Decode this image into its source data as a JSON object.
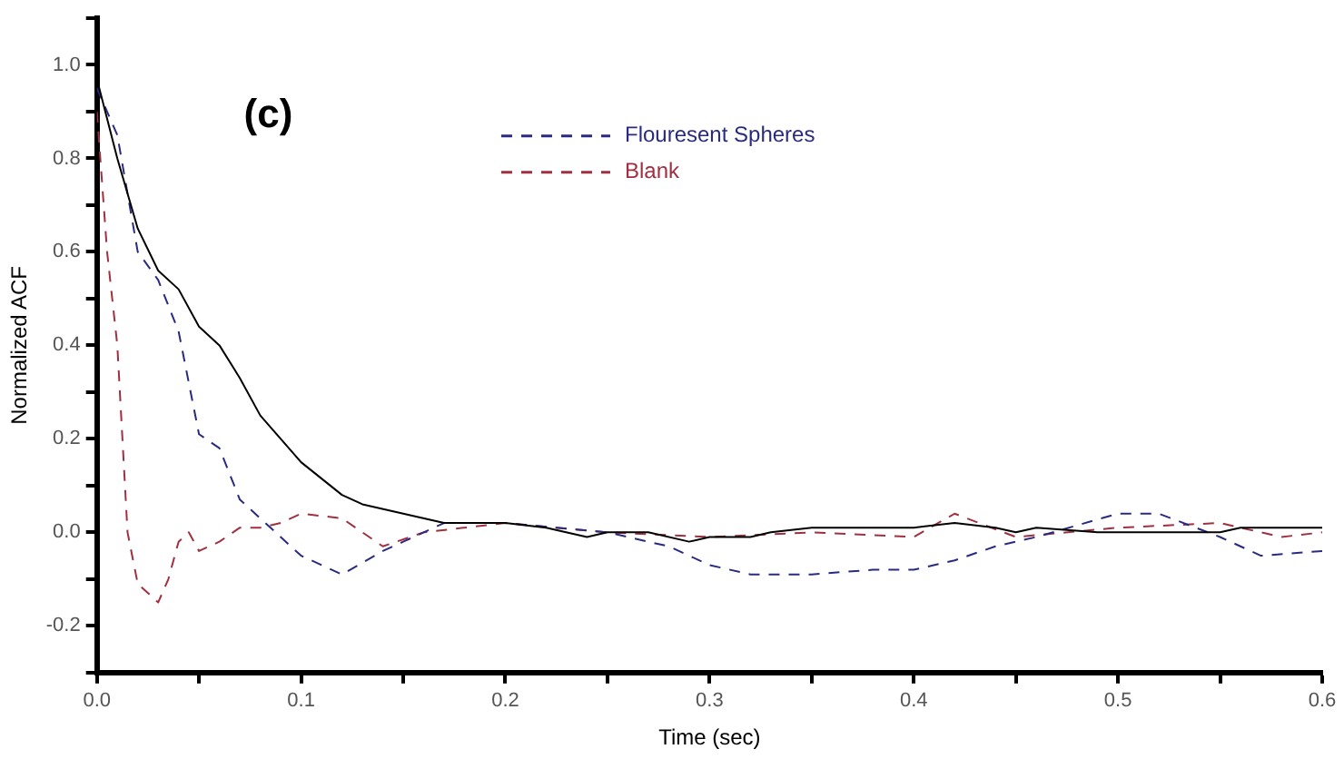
{
  "chart_data": {
    "type": "line",
    "title": "(c)",
    "xlabel": "Time (sec)",
    "ylabel": "Normalized ACF",
    "xlim": [
      0,
      0.6
    ],
    "ylim": [
      -0.3,
      1.1
    ],
    "xticks": [
      {
        "value": 0,
        "label": "0.0"
      },
      {
        "value": 0.05,
        "label": null
      },
      {
        "value": 0.1,
        "label": "0.1"
      },
      {
        "value": 0.15,
        "label": null
      },
      {
        "value": 0.2,
        "label": "0.2"
      },
      {
        "value": 0.25,
        "label": null
      },
      {
        "value": 0.3,
        "label": "0.3"
      },
      {
        "value": 0.35,
        "label": null
      },
      {
        "value": 0.4,
        "label": "0.4"
      },
      {
        "value": 0.45,
        "label": null
      },
      {
        "value": 0.5,
        "label": "0.5"
      },
      {
        "value": 0.55,
        "label": null
      },
      {
        "value": 0.6,
        "label": "0.6"
      }
    ],
    "yticks": [
      {
        "value": -0.3,
        "label": null
      },
      {
        "value": -0.2,
        "label": "-0.2"
      },
      {
        "value": -0.1,
        "label": null
      },
      {
        "value": 0,
        "label": "0.0"
      },
      {
        "value": 0.1,
        "label": null
      },
      {
        "value": 0.2,
        "label": "0.2"
      },
      {
        "value": 0.3,
        "label": null
      },
      {
        "value": 0.4,
        "label": "0.4"
      },
      {
        "value": 0.5,
        "label": null
      },
      {
        "value": 0.6,
        "label": "0.6"
      },
      {
        "value": 0.7,
        "label": null
      },
      {
        "value": 0.8,
        "label": "0.8"
      },
      {
        "value": 0.9,
        "label": null
      },
      {
        "value": 1.0,
        "label": "1.0"
      },
      {
        "value": 1.1,
        "label": null
      }
    ],
    "grid": false,
    "legend": "top",
    "marker": "none",
    "series": [
      {
        "color": "#000000",
        "line_style": "solid",
        "x": [
          0,
          0.01,
          0.02,
          0.03,
          0.04,
          0.05,
          0.06,
          0.07,
          0.08,
          0.09,
          0.1,
          0.12,
          0.13,
          0.15,
          0.17,
          0.2,
          0.22,
          0.24,
          0.25,
          0.27,
          0.29,
          0.3,
          0.32,
          0.33,
          0.35,
          0.4,
          0.42,
          0.44,
          0.45,
          0.46,
          0.49,
          0.55,
          0.56,
          0.6
        ],
        "values": [
          0.97,
          0.8,
          0.65,
          0.56,
          0.52,
          0.44,
          0.4,
          0.33,
          0.25,
          0.2,
          0.15,
          0.08,
          0.06,
          0.04,
          0.02,
          0.02,
          0.01,
          -0.01,
          0,
          0,
          -0.02,
          -0.01,
          -0.01,
          0,
          0.01,
          0.01,
          0.02,
          0.01,
          0,
          0.01,
          0,
          0,
          0.01,
          0.01
        ]
      },
      {
        "name": "Flouresent Spheres",
        "color": "#2a2a80",
        "line_style": "dashed",
        "x": [
          0,
          0.01,
          0.02,
          0.03,
          0.04,
          0.05,
          0.06,
          0.07,
          0.08,
          0.09,
          0.1,
          0.11,
          0.12,
          0.14,
          0.15,
          0.16,
          0.17,
          0.2,
          0.25,
          0.28,
          0.3,
          0.32,
          0.35,
          0.38,
          0.4,
          0.42,
          0.44,
          0.46,
          0.5,
          0.52,
          0.55,
          0.57,
          0.6
        ],
        "values": [
          0.95,
          0.85,
          0.6,
          0.54,
          0.43,
          0.21,
          0.18,
          0.07,
          0.03,
          -0.01,
          -0.05,
          -0.07,
          -0.09,
          -0.04,
          -0.02,
          0,
          0.02,
          0.02,
          0,
          -0.03,
          -0.07,
          -0.09,
          -0.09,
          -0.08,
          -0.08,
          -0.06,
          -0.03,
          -0.01,
          0.04,
          0.04,
          -0.01,
          -0.05,
          -0.04
        ]
      },
      {
        "name": "Blank",
        "color": "#a03040",
        "line_style": "dashed",
        "x": [
          0,
          0.005,
          0.01,
          0.015,
          0.02,
          0.03,
          0.035,
          0.04,
          0.045,
          0.05,
          0.06,
          0.07,
          0.08,
          0.09,
          0.1,
          0.12,
          0.14,
          0.16,
          0.2,
          0.25,
          0.3,
          0.35,
          0.4,
          0.42,
          0.45,
          0.5,
          0.55,
          0.58,
          0.6
        ],
        "values": [
          0.9,
          0.6,
          0.4,
          0,
          -0.11,
          -0.15,
          -0.1,
          -0.02,
          0,
          -0.04,
          -0.02,
          0.01,
          0.01,
          0.02,
          0.04,
          0.03,
          -0.03,
          0,
          0.02,
          0,
          -0.01,
          0,
          -0.01,
          0.04,
          -0.01,
          0.01,
          0.02,
          -0.01,
          0
        ]
      }
    ]
  }
}
